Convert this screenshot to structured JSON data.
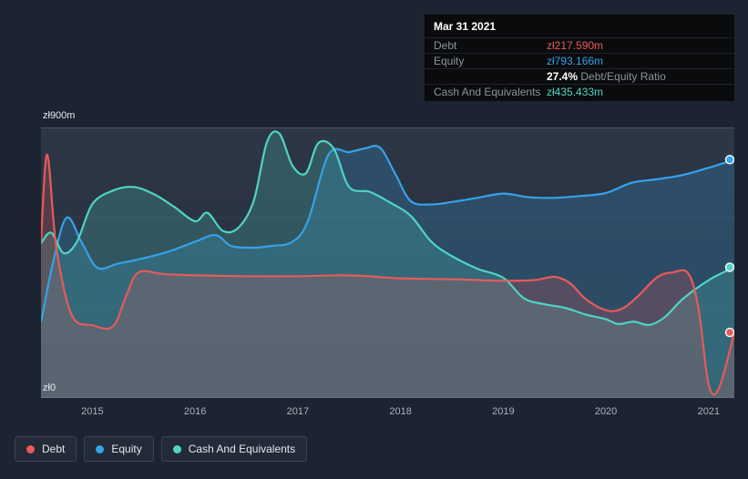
{
  "tooltip": {
    "date": "Mar 31 2021",
    "debt_label": "Debt",
    "debt_value": "zł217.590m",
    "equity_label": "Equity",
    "equity_value": "zł793.166m",
    "ratio_value": "27.4%",
    "ratio_text": "Debt/Equity Ratio",
    "cash_label": "Cash And Equivalents",
    "cash_value": "zł435.433m"
  },
  "axis": {
    "y_top": "zł900m",
    "y_bottom": "zł0",
    "x_ticks": [
      "2015",
      "2016",
      "2017",
      "2018",
      "2019",
      "2020",
      "2021"
    ]
  },
  "legend": [
    "Debt",
    "Equity",
    "Cash And Equivalents"
  ],
  "chart_data": {
    "type": "area",
    "title": "",
    "xlabel": "",
    "ylabel": "",
    "xlim": [
      2014.5,
      2021.25
    ],
    "ylim": [
      0,
      900
    ],
    "y_unit": "zł millions",
    "gridlines": [
      0,
      300,
      600,
      900
    ],
    "legend_position": "bottom-left",
    "series": [
      {
        "name": "Debt",
        "color": "#e85a5a",
        "x": [
          2014.5,
          2014.56,
          2014.65,
          2014.8,
          2015.0,
          2015.2,
          2015.33,
          2015.45,
          2015.7,
          2016.0,
          2016.5,
          2017.0,
          2017.5,
          2018.0,
          2018.5,
          2019.0,
          2019.3,
          2019.5,
          2019.65,
          2019.8,
          2020.0,
          2020.15,
          2020.3,
          2020.5,
          2020.65,
          2020.8,
          2020.9,
          2021.0,
          2021.1,
          2021.25
        ],
        "values": [
          520,
          810,
          500,
          275,
          242,
          238,
          340,
          418,
          412,
          408,
          405,
          405,
          408,
          398,
          395,
          390,
          392,
          403,
          382,
          330,
          292,
          296,
          335,
          402,
          418,
          415,
          300,
          45,
          32,
          218
        ]
      },
      {
        "name": "Equity",
        "color": "#35a2ea",
        "x": [
          2014.5,
          2014.62,
          2014.75,
          2014.9,
          2015.05,
          2015.25,
          2015.5,
          2015.75,
          2016.0,
          2016.2,
          2016.35,
          2016.55,
          2016.75,
          2016.95,
          2017.1,
          2017.3,
          2017.5,
          2017.65,
          2017.8,
          2017.95,
          2018.1,
          2018.3,
          2018.5,
          2018.75,
          2019.0,
          2019.25,
          2019.5,
          2019.75,
          2020.0,
          2020.25,
          2020.5,
          2020.75,
          2021.0,
          2021.25
        ],
        "values": [
          252,
          455,
          600,
          515,
          433,
          447,
          465,
          488,
          520,
          542,
          506,
          500,
          506,
          520,
          590,
          810,
          818,
          830,
          833,
          745,
          655,
          644,
          652,
          666,
          680,
          668,
          666,
          672,
          682,
          716,
          728,
          742,
          766,
          793
        ]
      },
      {
        "name": "Cash And Equivalents",
        "color": "#4fd4c4",
        "x": [
          2014.5,
          2014.6,
          2014.72,
          2014.85,
          2015.0,
          2015.2,
          2015.4,
          2015.6,
          2015.8,
          2016.0,
          2016.12,
          2016.27,
          2016.42,
          2016.57,
          2016.7,
          2016.82,
          2016.95,
          2017.08,
          2017.2,
          2017.35,
          2017.5,
          2017.7,
          2017.9,
          2018.1,
          2018.3,
          2018.5,
          2018.75,
          2019.0,
          2019.2,
          2019.4,
          2019.6,
          2019.8,
          2020.0,
          2020.12,
          2020.27,
          2020.42,
          2020.57,
          2020.75,
          2021.0,
          2021.25
        ],
        "values": [
          515,
          550,
          482,
          520,
          645,
          690,
          702,
          678,
          635,
          588,
          616,
          556,
          566,
          655,
          852,
          880,
          772,
          748,
          848,
          830,
          702,
          686,
          650,
          606,
          520,
          472,
          430,
          400,
          332,
          312,
          300,
          278,
          262,
          246,
          254,
          243,
          268,
          330,
          392,
          435
        ]
      }
    ]
  }
}
